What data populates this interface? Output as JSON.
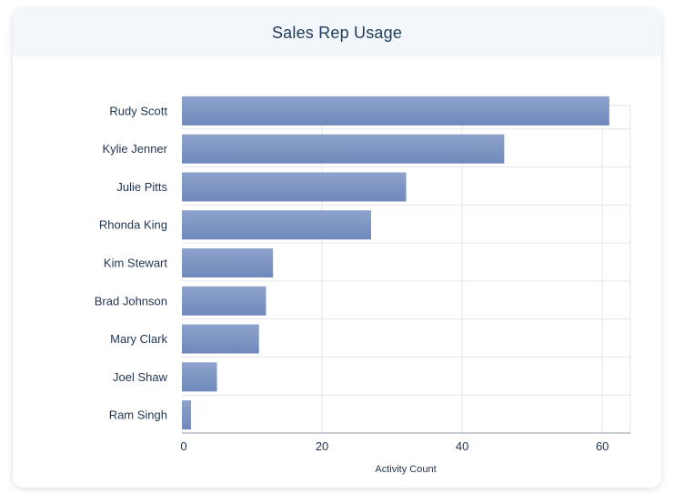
{
  "title": "Sales Rep Usage",
  "colors": {
    "bar_top": "#8ea3cc",
    "bar_bottom": "#6f89bb",
    "grid": "#e3e6ea",
    "axis": "#b5bcc6",
    "header_bg": "#f3f7fb"
  },
  "chart_data": {
    "type": "bar",
    "orientation": "horizontal",
    "title": "Sales Rep Usage",
    "xlabel": "Activity Count",
    "ylabel": "",
    "categories": [
      "Rudy Scott",
      "Kylie Jenner",
      "Julie Pitts",
      "Rhonda King",
      "Kim Stewart",
      "Brad Johnson",
      "Mary Clark",
      "Joel Shaw",
      "Ram Singh"
    ],
    "values": [
      61,
      46,
      32,
      27,
      13,
      12,
      11,
      5,
      1.3
    ],
    "xlim": [
      0,
      64
    ],
    "xticks": [
      0,
      20,
      40,
      60
    ],
    "grid": true,
    "legend": "none"
  }
}
